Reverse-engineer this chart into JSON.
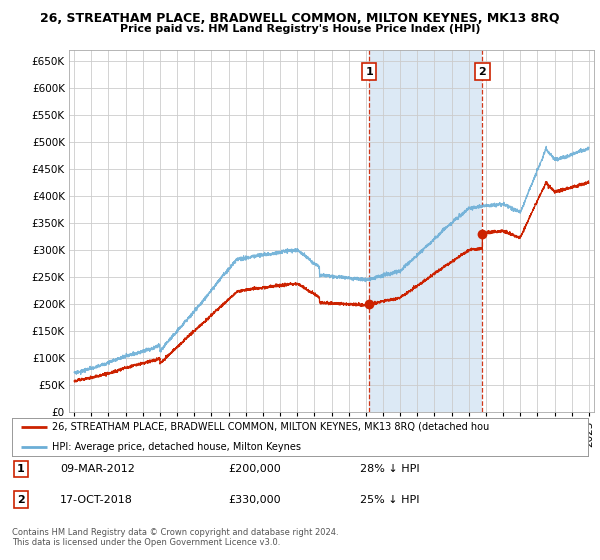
{
  "title": "26, STREATHAM PLACE, BRADWELL COMMON, MILTON KEYNES, MK13 8RQ",
  "subtitle": "Price paid vs. HM Land Registry's House Price Index (HPI)",
  "ylim": [
    0,
    650000
  ],
  "yticks": [
    0,
    50000,
    100000,
    150000,
    200000,
    250000,
    300000,
    350000,
    400000,
    450000,
    500000,
    550000,
    600000,
    650000
  ],
  "sale1_date": 2012.19,
  "sale1_price": 200000,
  "sale2_date": 2018.79,
  "sale2_price": 330000,
  "hpi_color": "#6baed6",
  "price_color": "#cc2200",
  "sale_dot_color": "#cc2200",
  "dashed_line_color": "#cc2200",
  "shade_color": "#dce9f5",
  "legend_label1": "26, STREATHAM PLACE, BRADWELL COMMON, MILTON KEYNES, MK13 8RQ (detached hou",
  "legend_label2": "HPI: Average price, detached house, Milton Keynes",
  "annotation1_date": "09-MAR-2012",
  "annotation1_price": "£200,000",
  "annotation1_note": "28% ↓ HPI",
  "annotation2_date": "17-OCT-2018",
  "annotation2_price": "£330,000",
  "annotation2_note": "25% ↓ HPI",
  "footer": "Contains HM Land Registry data © Crown copyright and database right 2024.\nThis data is licensed under the Open Government Licence v3.0."
}
